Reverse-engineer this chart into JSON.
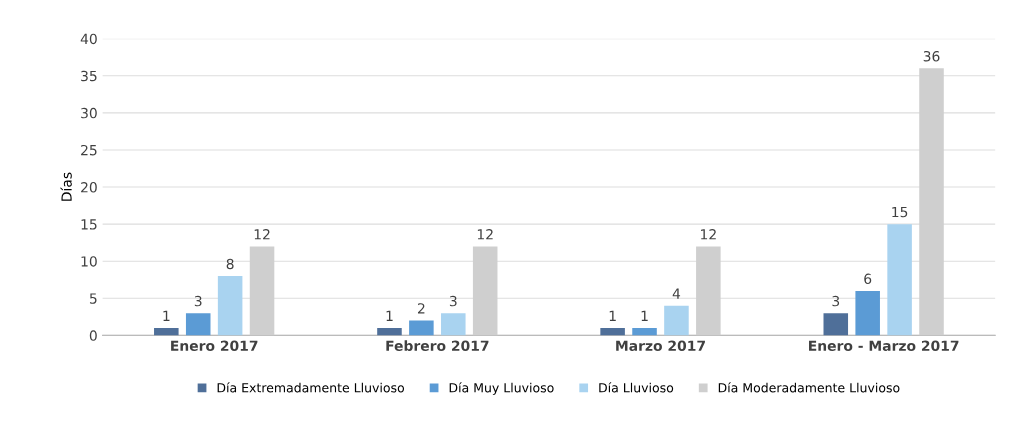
{
  "chart_data": {
    "type": "bar",
    "ylabel": "Días",
    "categories": [
      "Enero 2017",
      "Febrero 2017",
      "Marzo 2017",
      "Enero - Marzo 2017"
    ],
    "series": [
      {
        "name": "Día Extremadamente Lluvioso",
        "color": "#4f6f99",
        "values": [
          1,
          1,
          1,
          3
        ]
      },
      {
        "name": "Día Muy Lluvioso",
        "color": "#5b9bd5",
        "values": [
          3,
          2,
          1,
          6
        ]
      },
      {
        "name": "Día Lluvioso",
        "color": "#a9d3f0",
        "values": [
          8,
          3,
          4,
          15
        ]
      },
      {
        "name": "Día Moderadamente Lluvioso",
        "color": "#cfcfcf",
        "values": [
          12,
          12,
          12,
          36
        ]
      }
    ],
    "ylim": [
      0,
      40
    ],
    "yticks": [
      0,
      5,
      10,
      15,
      20,
      25,
      30,
      35,
      40
    ],
    "grid": "y",
    "legend": "bottom",
    "data_labels": true
  }
}
